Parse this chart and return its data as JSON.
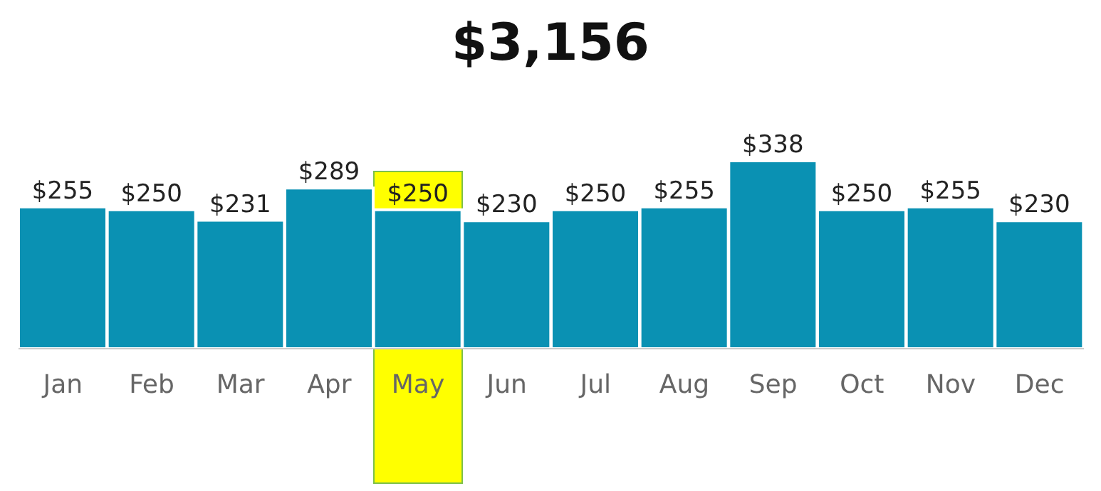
{
  "chart_data": {
    "type": "bar",
    "title": "$3,156",
    "categories": [
      "Jan",
      "Feb",
      "Mar",
      "Apr",
      "May",
      "Jun",
      "Jul",
      "Aug",
      "Sep",
      "Oct",
      "Nov",
      "Dec"
    ],
    "values": [
      255,
      250,
      231,
      289,
      250,
      230,
      250,
      255,
      338,
      250,
      255,
      230
    ],
    "value_labels": [
      "$255",
      "$250",
      "$231",
      "$289",
      "$250",
      "$230",
      "$250",
      "$255",
      "$338",
      "$250",
      "$255",
      "$230"
    ],
    "color": "#0a91b3",
    "bands": [
      {
        "axis": "x",
        "from": "May",
        "to": "May",
        "color": "#ffff00"
      }
    ],
    "grid": false,
    "legend": false
  }
}
